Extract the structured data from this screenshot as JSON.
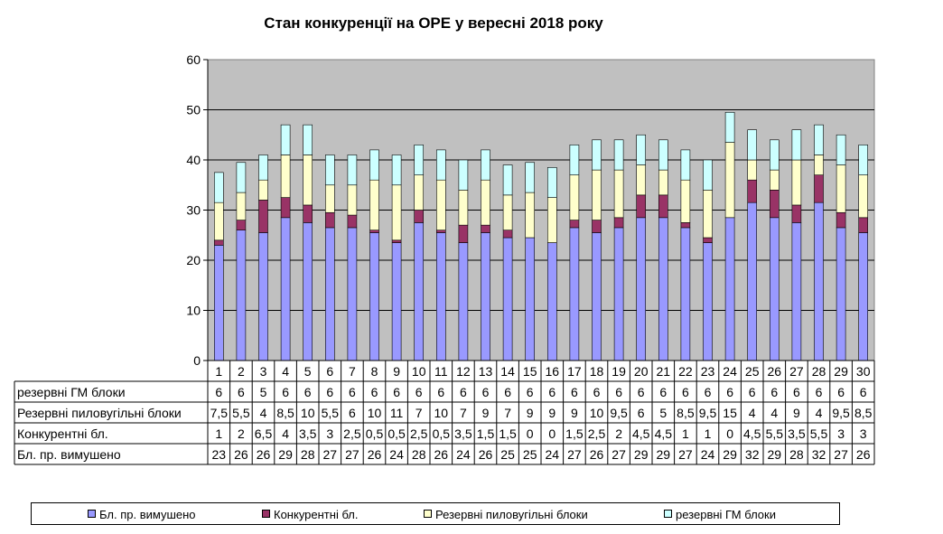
{
  "chart_data": {
    "type": "stacked-bar",
    "title": "Стан конкуренції на ОРЕ  у вересні 2018 року",
    "categories": [
      "1",
      "2",
      "3",
      "4",
      "5",
      "6",
      "7",
      "8",
      "9",
      "10",
      "11",
      "12",
      "13",
      "14",
      "15",
      "16",
      "17",
      "18",
      "19",
      "20",
      "21",
      "22",
      "23",
      "24",
      "25",
      "26",
      "27",
      "28",
      "29",
      "30"
    ],
    "ylim": [
      0,
      60
    ],
    "yticks": [
      "0",
      "10",
      "20",
      "30",
      "40",
      "50",
      "60"
    ],
    "grid": true,
    "legend_position": "bottom",
    "table_rows": [
      {
        "name": "резервні ГМ блоки",
        "values": [
          "6",
          "6",
          "5",
          "6",
          "6",
          "6",
          "6",
          "6",
          "6",
          "6",
          "6",
          "6",
          "6",
          "6",
          "6",
          "6",
          "6",
          "6",
          "6",
          "6",
          "6",
          "6",
          "6",
          "6",
          "6",
          "6",
          "6",
          "6",
          "6",
          "6"
        ]
      },
      {
        "name": "Резервні пиловугільні  блоки",
        "values": [
          "7,5",
          "5,5",
          "4",
          "8,5",
          "10",
          "5,5",
          "6",
          "10",
          "11",
          "7",
          "10",
          "7",
          "9",
          "7",
          "9",
          "9",
          "9",
          "10",
          "9,5",
          "6",
          "5",
          "8,5",
          "9,5",
          "15",
          "4",
          "4",
          "9",
          "4",
          "9,5",
          "8,5"
        ]
      },
      {
        "name": "Конкурентні  бл.",
        "values": [
          "1",
          "2",
          "6,5",
          "4",
          "3,5",
          "3",
          "2,5",
          "0,5",
          "0,5",
          "2,5",
          "0,5",
          "3,5",
          "1,5",
          "1,5",
          "0",
          "0",
          "1,5",
          "2,5",
          "2",
          "4,5",
          "4,5",
          "1",
          "1",
          "0",
          "4,5",
          "5,5",
          "3,5",
          "5,5",
          "3",
          "3"
        ]
      },
      {
        "name": "Бл. пр. вимушено",
        "values": [
          "23",
          "26",
          "26",
          "29",
          "28",
          "27",
          "27",
          "26",
          "24",
          "28",
          "26",
          "24",
          "26",
          "25",
          "25",
          "24",
          "27",
          "26",
          "27",
          "29",
          "29",
          "27",
          "24",
          "29",
          "32",
          "29",
          "28",
          "32",
          "27",
          "26"
        ]
      }
    ],
    "series": [
      {
        "name": "Бл. пр. вимушено",
        "color": "#9999FF",
        "values": [
          23,
          26,
          25.5,
          28.5,
          27.5,
          26.5,
          26.5,
          25.5,
          23.5,
          27.5,
          25.5,
          23.5,
          25.5,
          24.5,
          24.5,
          23.5,
          26.5,
          25.5,
          26.5,
          28.5,
          28.5,
          26.5,
          23.5,
          28.5,
          31.5,
          28.5,
          27.5,
          31.5,
          26.5,
          25.5
        ]
      },
      {
        "name": "Конкурентні бл.",
        "color": "#993366",
        "values": [
          1,
          2,
          6.5,
          4,
          3.5,
          3,
          2.5,
          0.5,
          0.5,
          2.5,
          0.5,
          3.5,
          1.5,
          1.5,
          0,
          0,
          1.5,
          2.5,
          2,
          4.5,
          4.5,
          1,
          1,
          0,
          4.5,
          5.5,
          3.5,
          5.5,
          3,
          3
        ]
      },
      {
        "name": "Резервні пиловугільні  блоки",
        "color": "#FFFFCC",
        "values": [
          7.5,
          5.5,
          4,
          8.5,
          10,
          5.5,
          6,
          10,
          11,
          7,
          10,
          7,
          9,
          7,
          9,
          9,
          9,
          10,
          9.5,
          6,
          5,
          8.5,
          9.5,
          15,
          4,
          4,
          9,
          4,
          9.5,
          8.5
        ]
      },
      {
        "name": "резервні ГМ блоки",
        "color": "#CCFFFF",
        "values": [
          6,
          6,
          5,
          6,
          6,
          6,
          6,
          6,
          6,
          6,
          6,
          6,
          6,
          6,
          6,
          6,
          6,
          6,
          6,
          6,
          6,
          6,
          6,
          6,
          6,
          6,
          6,
          6,
          6,
          6
        ]
      }
    ]
  },
  "legend": {
    "items": [
      {
        "label": "Бл. пр. вимушено",
        "color": "#9999FF"
      },
      {
        "label": "Конкурентні бл.",
        "color": "#993366"
      },
      {
        "label": "Резервні пиловугільні  блоки",
        "color": "#FFFFCC"
      },
      {
        "label": "резервні ГМ блоки",
        "color": "#CCFFFF"
      }
    ]
  },
  "colors": {
    "plot_background": "#C0C0C0",
    "page_background": "#FFFFFF"
  }
}
